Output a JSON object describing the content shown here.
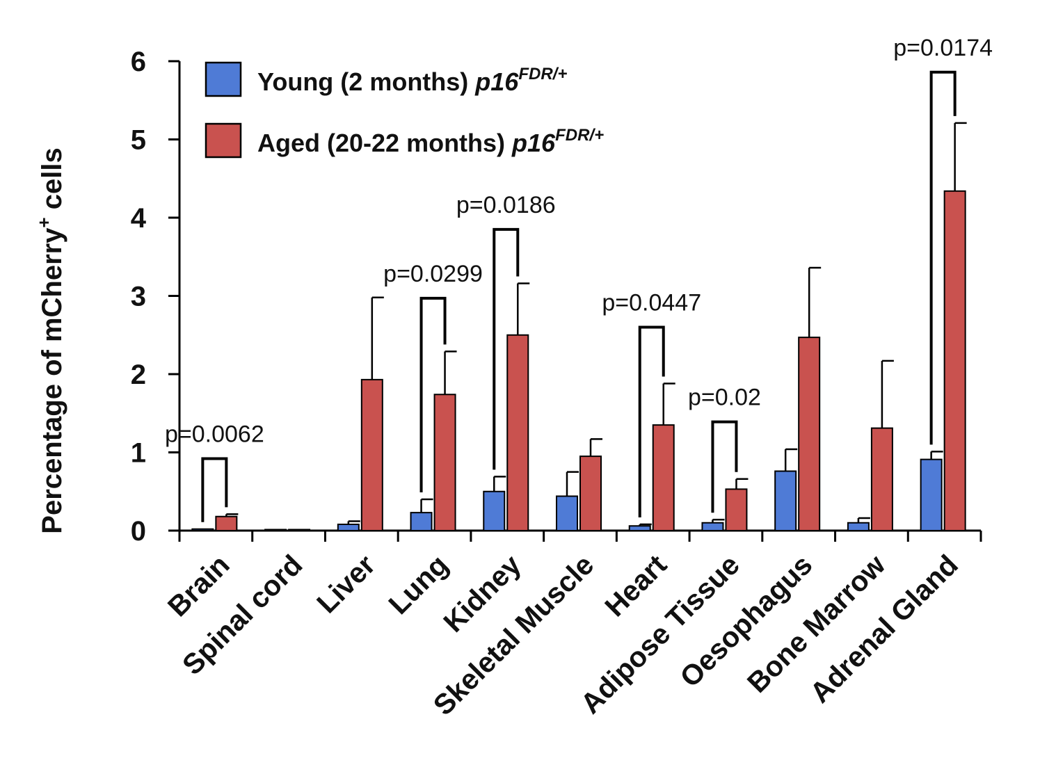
{
  "chart_data": {
    "type": "bar",
    "title": "",
    "xlabel": "",
    "ylabel": "Percentage of mCherry",
    "ylabel_sup": "+",
    "ylabel_suffix": " cells",
    "ylim": [
      0,
      6
    ],
    "yticks": [
      "0",
      "1",
      "2",
      "3",
      "4",
      "5",
      "6"
    ],
    "categories": [
      "Brain",
      "Spinal cord",
      "Liver",
      "Lung",
      "Kidney",
      "Skeletal Muscle",
      "Heart",
      "Adipose Tissue",
      "Oesophagus",
      "Bone Marrow",
      "Adrenal Gland"
    ],
    "series": [
      {
        "name": "Young (2 months)",
        "italic": "p16",
        "sup": "FDR/+",
        "color": "#4f7bd6",
        "values": [
          0.02,
          0.01,
          0.08,
          0.23,
          0.5,
          0.44,
          0.06,
          0.1,
          0.76,
          0.1,
          0.91
        ],
        "errors": [
          0.0,
          0.0,
          0.04,
          0.17,
          0.19,
          0.31,
          0.02,
          0.04,
          0.28,
          0.06,
          0.1
        ]
      },
      {
        "name": "Aged (20-22 months)",
        "italic": "p16",
        "sup": "FDR/+",
        "color": "#c9524f",
        "values": [
          0.18,
          0.01,
          1.93,
          1.74,
          2.5,
          0.95,
          1.35,
          0.53,
          2.47,
          1.31,
          4.34
        ],
        "errors": [
          0.03,
          0.0,
          1.05,
          0.55,
          0.66,
          0.22,
          0.53,
          0.13,
          0.89,
          0.86,
          0.87
        ]
      }
    ],
    "annotations": [
      {
        "category_index": 0,
        "text": "p=0.0062",
        "bracket_top": 0.92
      },
      {
        "category_index": 3,
        "text": "p=0.0299",
        "bracket_top": 2.97
      },
      {
        "category_index": 4,
        "text": "p=0.0186",
        "bracket_top": 3.85
      },
      {
        "category_index": 6,
        "text": "p=0.0447",
        "bracket_top": 2.6
      },
      {
        "category_index": 7,
        "text": "p=0.02",
        "bracket_top": 1.39
      },
      {
        "category_index": 10,
        "text": "p=0.0174",
        "bracket_top": 5.86
      }
    ],
    "legend_position": "top-left"
  }
}
